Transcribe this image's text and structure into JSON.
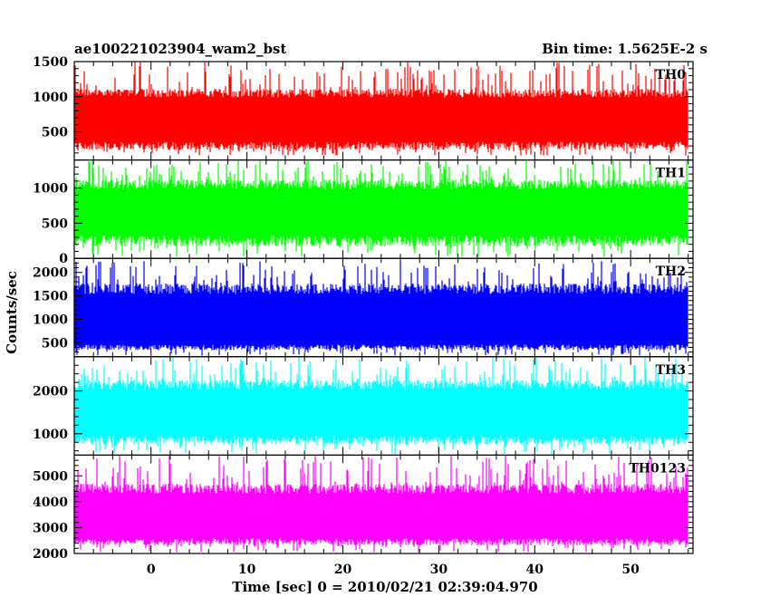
{
  "chart_data": {
    "type": "line",
    "title": "ae100221023904_wam2_bst",
    "subtitle": "Bin time: 1.5625E-2 s",
    "xlabel": "Time [sec] 0 = 2010/02/21 02:39:04.970",
    "ylabel": "Counts/sec",
    "xlim": [
      -8,
      56.5
    ],
    "xticks": [
      0,
      10,
      20,
      30,
      40,
      50
    ],
    "panels": [
      {
        "name": "TH0",
        "color": "#ff0000",
        "ylim": [
          100,
          1500
        ],
        "yticks": [
          500,
          1000,
          1500
        ],
        "mean": 700,
        "low": 300,
        "high": 1050,
        "spike_max": 1500,
        "dip_min": 160
      },
      {
        "name": "TH1",
        "color": "#00ff00",
        "ylim": [
          0,
          1400
        ],
        "yticks": [
          0,
          500,
          1000
        ],
        "mean": 650,
        "low": 250,
        "high": 1050,
        "spike_max": 1400,
        "dip_min": 20
      },
      {
        "name": "TH2",
        "color": "#0000ff",
        "ylim": [
          200,
          2300
        ],
        "yticks": [
          500,
          1000,
          1500,
          2000
        ],
        "mean": 1000,
        "low": 400,
        "high": 1650,
        "spike_max": 2250,
        "dip_min": 220
      },
      {
        "name": "TH3",
        "color": "#00ffff",
        "ylim": [
          500,
          2800
        ],
        "yticks": [
          1000,
          2000
        ],
        "mean": 1500,
        "low": 850,
        "high": 2150,
        "spike_max": 2800,
        "dip_min": 520
      },
      {
        "name": "TH0123",
        "color": "#ff00ff",
        "ylim": [
          2000,
          5800
        ],
        "yticks": [
          2000,
          3000,
          4000,
          5000
        ],
        "mean": 3400,
        "low": 2450,
        "high": 4500,
        "spike_max": 5800,
        "dip_min": 2050
      }
    ]
  }
}
